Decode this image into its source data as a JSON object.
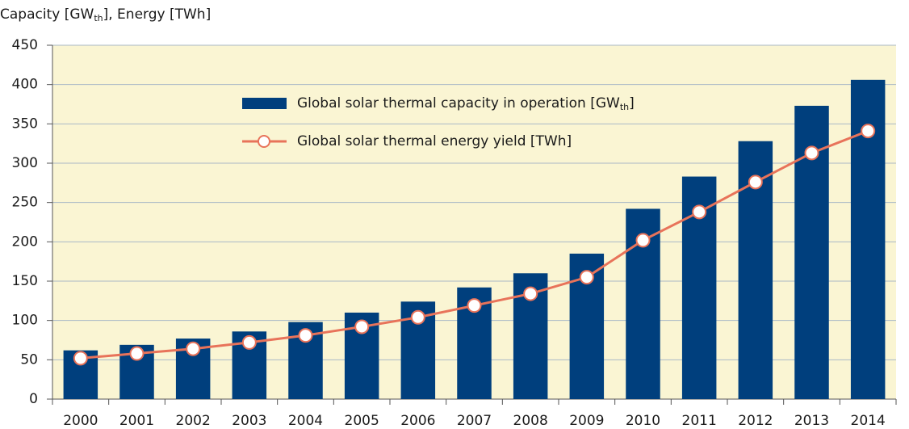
{
  "chart_data": {
    "type": "bar_line",
    "y_label": [
      {
        "text": "Capacity [GW"
      },
      {
        "text": "th",
        "sub": true
      },
      {
        "text": "], Energy [TWh]"
      }
    ],
    "categories": [
      "2000",
      "2001",
      "2002",
      "2003",
      "2004",
      "2005",
      "2006",
      "2007",
      "2008",
      "2009",
      "2010",
      "2011",
      "2012",
      "2013",
      "2014"
    ],
    "series": [
      {
        "name": [
          {
            "text": "Global solar thermal capacity in operation [GW"
          },
          {
            "text": "th",
            "sub": true
          },
          {
            "text": "]"
          }
        ],
        "type": "bar",
        "color": "#003f7d",
        "values": [
          62,
          69,
          77,
          86,
          98,
          110,
          124,
          142,
          160,
          185,
          242,
          283,
          328,
          373,
          406
        ]
      },
      {
        "name": [
          {
            "text": "Global solar thermal energy yield [TWh]"
          }
        ],
        "type": "line",
        "color": "#e8735a",
        "values": [
          52,
          58,
          64,
          72,
          81,
          92,
          104,
          119,
          134,
          155,
          202,
          238,
          276,
          313,
          341
        ]
      }
    ],
    "ylim": [
      0,
      450
    ],
    "yticks": [
      0,
      50,
      100,
      150,
      200,
      250,
      300,
      350,
      400,
      450
    ],
    "grid": true,
    "background": "#faf5d3"
  }
}
